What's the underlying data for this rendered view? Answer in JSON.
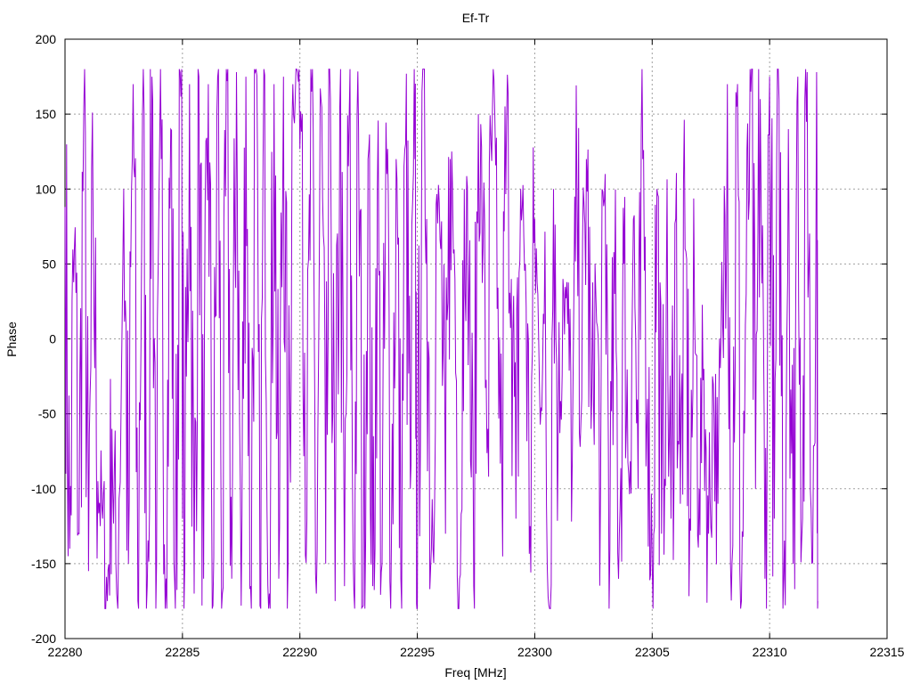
{
  "chart_data": {
    "type": "line",
    "title": "Ef-Tr",
    "xlabel": "Freq [MHz]",
    "ylabel": "Phase",
    "xlim": [
      22280,
      22315
    ],
    "ylim": [
      -200,
      200
    ],
    "xticks": [
      22280,
      22285,
      22290,
      22295,
      22300,
      22305,
      22310,
      22315
    ],
    "yticks": [
      -200,
      -150,
      -100,
      -50,
      0,
      50,
      100,
      150,
      200
    ],
    "xtick_labels": [
      "22280",
      "22285",
      "22290",
      "22295",
      "22300",
      "22305",
      "22310",
      "22315"
    ],
    "ytick_labels": [
      "-200",
      "-150",
      "-100",
      "-50",
      "0",
      "50",
      "100",
      "150",
      "200"
    ],
    "grid": true,
    "legend": "none",
    "series": [
      {
        "color": "#9400d3",
        "x_start": 22280,
        "x_end": 22312,
        "description_points": [
          [
            22280.0,
            88
          ],
          [
            22280.2,
            -140
          ],
          [
            22280.4,
            60
          ],
          [
            22280.6,
            -130
          ],
          [
            22280.8,
            155
          ],
          [
            22281.0,
            -155
          ],
          [
            22281.2,
            75
          ],
          [
            22281.4,
            -95
          ],
          [
            22281.6,
            -120
          ],
          [
            22281.8,
            -175
          ],
          [
            22282.0,
            -60
          ],
          [
            22282.2,
            -170
          ],
          [
            22282.5,
            100
          ],
          [
            22282.7,
            -150
          ],
          [
            22282.9,
            170
          ],
          [
            22283.1,
            -175
          ],
          [
            22283.3,
            150
          ],
          [
            22283.5,
            -165
          ],
          [
            22283.7,
            175
          ],
          [
            22283.9,
            -150
          ],
          [
            22284.1,
            120
          ],
          [
            22284.3,
            -160
          ],
          [
            22284.5,
            140
          ],
          [
            22284.7,
            -180
          ],
          [
            22284.9,
            178
          ],
          [
            22285.1,
            -150
          ],
          [
            22285.3,
            170
          ],
          [
            22285.5,
            -170
          ],
          [
            22285.7,
            175
          ],
          [
            22285.9,
            -160
          ],
          [
            22286.1,
            170
          ],
          [
            22286.3,
            -178
          ],
          [
            22286.5,
            175
          ],
          [
            22286.7,
            -170
          ],
          [
            22286.9,
            172
          ],
          [
            22287.1,
            -160
          ],
          [
            22287.3,
            178
          ],
          [
            22287.5,
            -178
          ],
          [
            22287.7,
            175
          ],
          [
            22287.9,
            -165
          ],
          [
            22288.1,
            178
          ],
          [
            22288.3,
            -178
          ],
          [
            22288.5,
            176
          ],
          [
            22288.7,
            -170
          ],
          [
            22288.9,
            170
          ],
          [
            22289.1,
            -160
          ],
          [
            22289.3,
            175
          ],
          [
            22289.5,
            -150
          ],
          [
            22289.7,
            170
          ],
          [
            22289.9,
            178
          ],
          [
            22290.1,
            150
          ],
          [
            22290.3,
            -120
          ],
          [
            22290.5,
            165
          ],
          [
            22290.7,
            -170
          ],
          [
            22290.9,
            160
          ],
          [
            22291.1,
            -150
          ],
          [
            22291.3,
            160
          ],
          [
            22291.5,
            -175
          ],
          [
            22291.7,
            155
          ],
          [
            22291.9,
            -165
          ],
          [
            22292.1,
            150
          ],
          [
            22292.3,
            -170
          ],
          [
            22292.5,
            140
          ],
          [
            22292.7,
            -178
          ],
          [
            22292.9,
            120
          ],
          [
            22293.1,
            -165
          ],
          [
            22293.3,
            100
          ],
          [
            22293.5,
            -150
          ],
          [
            22293.7,
            110
          ],
          [
            22293.9,
            -130
          ],
          [
            22294.1,
            120
          ],
          [
            22294.3,
            -160
          ],
          [
            22294.5,
            130
          ],
          [
            22294.7,
            -100
          ],
          [
            22294.9,
            120
          ],
          [
            22295.0,
            -180
          ],
          [
            22295.2,
            165
          ],
          [
            22295.4,
            80
          ],
          [
            22295.6,
            -140
          ],
          [
            22295.8,
            90
          ],
          [
            22296.0,
            60
          ],
          [
            22296.2,
            -130
          ],
          [
            22296.4,
            120
          ],
          [
            22296.6,
            40
          ],
          [
            22296.8,
            -160
          ],
          [
            22297.0,
            100
          ],
          [
            22297.2,
            30
          ],
          [
            22297.4,
            -165
          ],
          [
            22297.6,
            150
          ],
          [
            22297.8,
            60
          ],
          [
            22298.0,
            -60
          ],
          [
            22298.2,
            155
          ],
          [
            22298.4,
            20
          ],
          [
            22298.6,
            -90
          ],
          [
            22298.8,
            145
          ],
          [
            22299.0,
            40
          ],
          [
            22299.2,
            -120
          ],
          [
            22299.4,
            100
          ],
          [
            22299.6,
            50
          ],
          [
            22299.8,
            -125
          ],
          [
            22300.0,
            80
          ],
          [
            22300.2,
            -30
          ],
          [
            22300.4,
            10
          ],
          [
            22300.6,
            -178
          ],
          [
            22300.8,
            100
          ],
          [
            22301.0,
            -60
          ],
          [
            22301.2,
            40
          ],
          [
            22301.4,
            10
          ],
          [
            22301.6,
            -80
          ],
          [
            22301.8,
            90
          ],
          [
            22302.0,
            -40
          ],
          [
            22302.2,
            120
          ],
          [
            22302.4,
            -60
          ],
          [
            22302.6,
            30
          ],
          [
            22302.8,
            -100
          ],
          [
            22303.0,
            110
          ],
          [
            22303.2,
            -140
          ],
          [
            22303.4,
            30
          ],
          [
            22303.6,
            -130
          ],
          [
            22303.8,
            50
          ],
          [
            22304.0,
            -90
          ],
          [
            22304.2,
            80
          ],
          [
            22304.4,
            -100
          ],
          [
            22304.6,
            120
          ],
          [
            22304.8,
            -40
          ],
          [
            22305.0,
            -150
          ],
          [
            22305.2,
            100
          ],
          [
            22305.4,
            -130
          ],
          [
            22305.6,
            30
          ],
          [
            22305.8,
            -120
          ],
          [
            22306.0,
            80
          ],
          [
            22306.2,
            -110
          ],
          [
            22306.4,
            60
          ],
          [
            22306.6,
            -120
          ],
          [
            22306.8,
            20
          ],
          [
            22307.0,
            -100
          ],
          [
            22307.2,
            -20
          ],
          [
            22307.4,
            -130
          ],
          [
            22307.6,
            -30
          ],
          [
            22307.8,
            -110
          ],
          [
            22308.0,
            10
          ],
          [
            22308.2,
            170
          ],
          [
            22308.4,
            -150
          ],
          [
            22308.6,
            155
          ],
          [
            22308.8,
            -175
          ],
          [
            22309.0,
            30
          ],
          [
            22309.2,
            165
          ],
          [
            22309.4,
            -100
          ],
          [
            22309.6,
            160
          ],
          [
            22309.8,
            -160
          ],
          [
            22310.0,
            175
          ],
          [
            22310.2,
            -120
          ],
          [
            22310.4,
            160
          ],
          [
            22310.6,
            -160
          ],
          [
            22310.8,
            140
          ],
          [
            22311.0,
            -150
          ],
          [
            22311.2,
            175
          ],
          [
            22311.4,
            -120
          ],
          [
            22311.6,
            178
          ],
          [
            22311.8,
            -150
          ],
          [
            22312.0,
            178
          ],
          [
            22312.05,
            -175
          ]
        ]
      }
    ]
  }
}
